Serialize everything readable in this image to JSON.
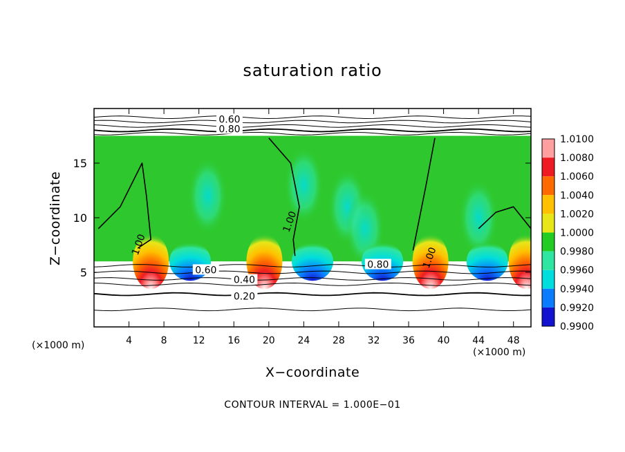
{
  "chart_data": {
    "type": "heatmap",
    "title": "saturation ratio",
    "xlabel": "X−coordinate",
    "ylabel": "Z−coordinate",
    "x_unit_left": "(×1000 m)",
    "x_unit_right": "(×1000 m)",
    "footer": "CONTOUR INTERVAL = 1.000E−01",
    "xlim": [
      0,
      50
    ],
    "ylim": [
      0,
      20
    ],
    "x_ticks": [
      4,
      8,
      12,
      16,
      20,
      24,
      28,
      32,
      36,
      40,
      44,
      48
    ],
    "y_ticks": [
      5,
      10,
      15
    ],
    "colorbar": {
      "labels": [
        "1.0100",
        "1.0080",
        "1.0060",
        "1.0040",
        "1.0020",
        "1.0000",
        "0.9980",
        "0.9960",
        "0.9940",
        "0.9920",
        "0.9900"
      ],
      "colors": [
        "#ff9fa0",
        "#ee1c22",
        "#ff6a00",
        "#ffc000",
        "#e6e619",
        "#22cc22",
        "#2fe6a0",
        "#00dddd",
        "#0a7cff",
        "#1212d0",
        "#5a007f"
      ]
    },
    "field": {
      "cloud_layer_z": [
        6,
        17.5
      ],
      "background_color": "#2ec82e",
      "supersaturated_cores_x": [
        6.5,
        19.5,
        38.5,
        49.5
      ],
      "subsaturated_spots_x": [
        11,
        25,
        33,
        45
      ]
    },
    "contour_labels": [
      {
        "text": "0.60",
        "x": 15.5,
        "z": 18.9
      },
      {
        "text": "0.80",
        "x": 15.5,
        "z": 18.0
      },
      {
        "text": "1.00",
        "x": 22.5,
        "z": 9.6
      },
      {
        "text": "1.00",
        "x": 5.2,
        "z": 7.5
      },
      {
        "text": "1.00",
        "x": 38.5,
        "z": 6.3
      },
      {
        "text": "0.60",
        "x": 12.8,
        "z": 5.1
      },
      {
        "text": "0.80",
        "x": 32.5,
        "z": 5.6
      },
      {
        "text": "0.40",
        "x": 17.2,
        "z": 4.2
      },
      {
        "text": "0.20",
        "x": 17.2,
        "z": 2.7
      }
    ]
  }
}
